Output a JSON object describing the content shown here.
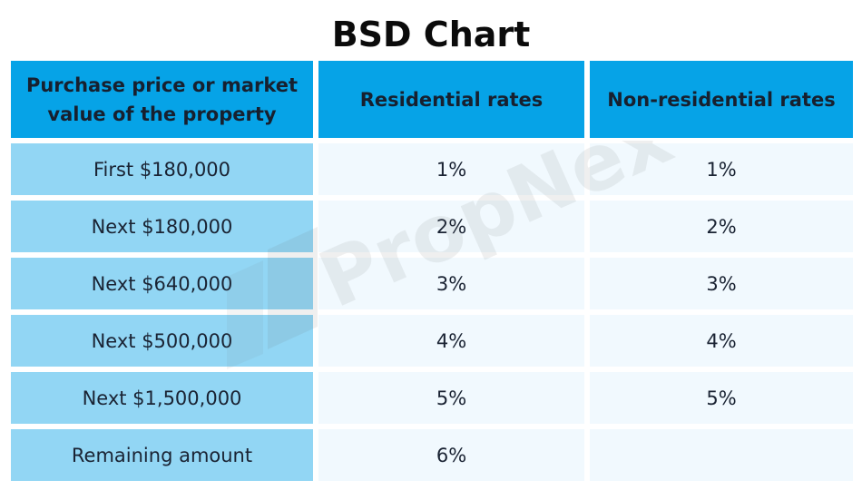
{
  "title": "BSD Chart",
  "watermark": "PropNex",
  "headers": [
    "Purchase price or market value of the property",
    "Residential rates",
    "Non-residential rates"
  ],
  "rows": [
    {
      "label": "First $180,000",
      "residential": "1%",
      "non_residential": "1%"
    },
    {
      "label": "Next $180,000",
      "residential": "2%",
      "non_residential": "2%"
    },
    {
      "label": "Next $640,000",
      "residential": "3%",
      "non_residential": "3%"
    },
    {
      "label": "Next $500,000",
      "residential": "4%",
      "non_residential": "4%"
    },
    {
      "label": "Next $1,500,000",
      "residential": "5%",
      "non_residential": "5%"
    },
    {
      "label": "Remaining amount",
      "residential": "6%",
      "non_residential": ""
    }
  ],
  "colors": {
    "header_bg": "#06a3e7",
    "label_bg": "#92d6f4",
    "value_bg": "#f1f9fe"
  }
}
